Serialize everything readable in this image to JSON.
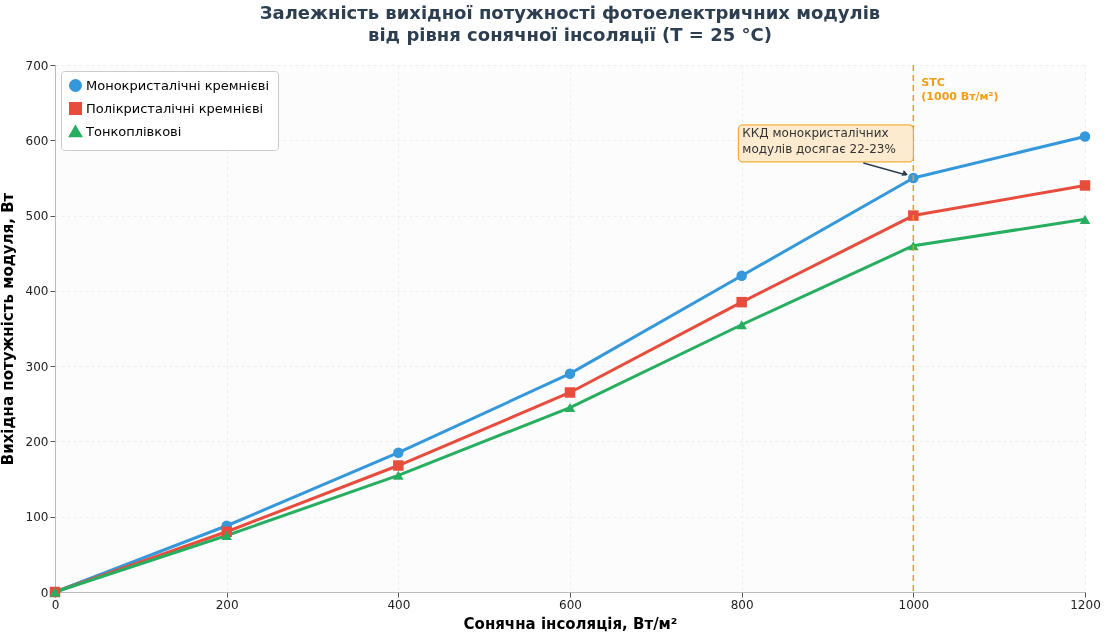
{
  "chart_data": {
    "type": "line",
    "title": "Залежність вихідної потужності фотоелектричних модулів\nвід рівня сонячної інсоляції (T = 25 °C)",
    "xlabel": "Сонячна інсоляція, Вт/м²",
    "ylabel": "Вихідна потужність модуля, Вт",
    "x": [
      0,
      200,
      400,
      600,
      800,
      1000,
      1200
    ],
    "series": [
      {
        "name": "Монокристалічні кремнієві",
        "color": "#3498db",
        "marker": "circle",
        "values": [
          0,
          88,
          185,
          290,
          420,
          550,
          605
        ]
      },
      {
        "name": "Полікристалічні кремнієві",
        "color": "#e74c3c",
        "marker": "square",
        "values": [
          0,
          80,
          168,
          265,
          385,
          500,
          540
        ]
      },
      {
        "name": "Тонкоплівкові",
        "color": "#27ae60",
        "marker": "triangle",
        "values": [
          0,
          75,
          155,
          245,
          355,
          460,
          495
        ]
      }
    ],
    "xlim": [
      0,
      1200
    ],
    "xticks": [
      0,
      200,
      400,
      600,
      800,
      1000,
      1200
    ],
    "ylim": [
      0,
      700
    ],
    "yticks": [
      0,
      100,
      200,
      300,
      400,
      500,
      600,
      700
    ],
    "grid": true,
    "legend": "top left",
    "line_style": "solid",
    "ref_lines": [
      {
        "axis": "x",
        "value": 1000,
        "label": "STC\n(1000 Вт/м²)",
        "color": "#f39c12",
        "line_style": "dashed"
      }
    ],
    "annotations": [
      {
        "text": "ККД монокристалічних\nмодулів досягає 22-23%",
        "x": 1000,
        "y": 550
      }
    ]
  }
}
